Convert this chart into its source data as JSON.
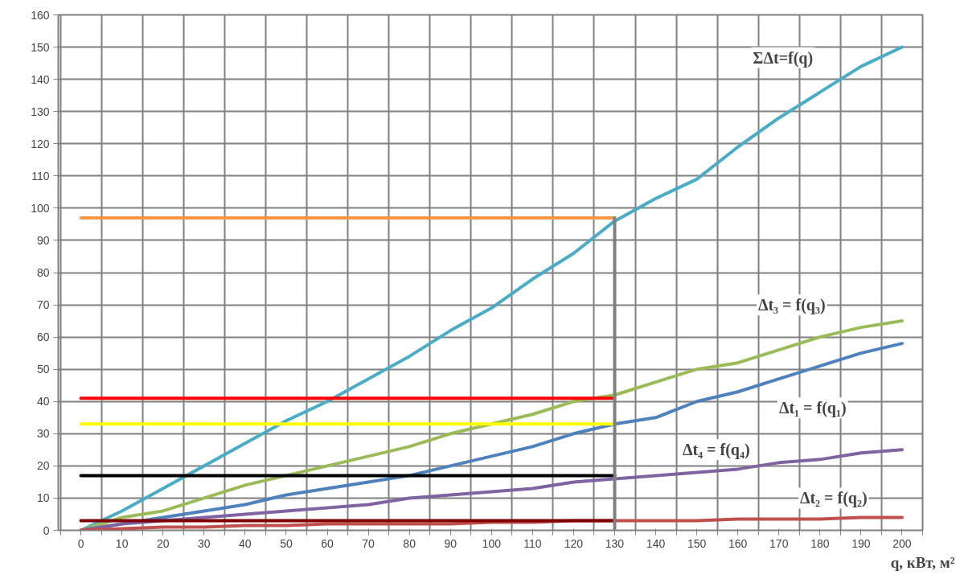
{
  "chart_data": {
    "type": "line",
    "xlabel": "q, кВт, м²",
    "x": [
      0,
      10,
      20,
      30,
      40,
      50,
      60,
      70,
      80,
      90,
      100,
      110,
      120,
      130,
      140,
      150,
      160,
      170,
      180,
      190,
      200
    ],
    "series": [
      {
        "name": "ΣΔt=f(q)",
        "color": "#4bacc6",
        "values": [
          0,
          6,
          13,
          20,
          27,
          34,
          40,
          47,
          54,
          62,
          69,
          78,
          86,
          96,
          103,
          109,
          119,
          128,
          136,
          144,
          150
        ]
      },
      {
        "name": "Δt₃ = f(q₃)",
        "color": "#9bbb59",
        "values": [
          0,
          4,
          6,
          10,
          14,
          17,
          20,
          23,
          26,
          30,
          33,
          36,
          40,
          42,
          46,
          50,
          52,
          56,
          60,
          63,
          65
        ]
      },
      {
        "name": "Δt₁ = f(q₁)",
        "color": "#4f81bd",
        "values": [
          0,
          2,
          4,
          6,
          8,
          11,
          13,
          15,
          17,
          20,
          23,
          26,
          30,
          33,
          35,
          40,
          43,
          47,
          51,
          55,
          58
        ]
      },
      {
        "name": "Δt₄ = f(q₄)",
        "color": "#8064a2",
        "values": [
          0,
          2,
          3,
          4,
          5,
          6,
          7,
          8,
          10,
          11,
          12,
          13,
          15,
          16,
          17,
          18,
          19,
          21,
          22,
          24,
          25
        ]
      },
      {
        "name": "Δt₂ = f(q₂)",
        "color": "#c0504d",
        "values": [
          0,
          0.5,
          1,
          1,
          1.5,
          1.5,
          2,
          2,
          2,
          2,
          2.5,
          2.5,
          3,
          3,
          3,
          3,
          3.5,
          3.5,
          3.5,
          4,
          4
        ]
      },
      {
        "color": "#f79646",
        "values": [
          97,
          97,
          97,
          97,
          97,
          97,
          97,
          97,
          97,
          97,
          97,
          97,
          97,
          97,
          null,
          null,
          null,
          null,
          null,
          null,
          null
        ]
      },
      {
        "color": "#ff0000",
        "values": [
          41,
          41,
          41,
          41,
          41,
          41,
          41,
          41,
          41,
          41,
          41,
          41,
          41,
          41,
          null,
          null,
          null,
          null,
          null,
          null,
          null
        ]
      },
      {
        "color": "#ffff00",
        "values": [
          33,
          33,
          33,
          33,
          33,
          33,
          33,
          33,
          33,
          33,
          33,
          33,
          33,
          33,
          null,
          null,
          null,
          null,
          null,
          null,
          null
        ]
      },
      {
        "color": "#000000",
        "values": [
          17,
          17,
          17,
          17,
          17,
          17,
          17,
          17,
          17,
          17,
          17,
          17,
          17,
          17,
          null,
          null,
          null,
          null,
          null,
          null,
          null
        ]
      },
      {
        "color": "#7f0000",
        "values": [
          3,
          3,
          3,
          3,
          3,
          3,
          3,
          3,
          3,
          3,
          3,
          3,
          3,
          3,
          null,
          null,
          null,
          null,
          null,
          null,
          null
        ]
      },
      {
        "color": "#808080",
        "x": [
          130,
          130
        ],
        "values": [
          0,
          97
        ]
      }
    ],
    "xlim": [
      -5.5,
      205
    ],
    "xticks": [
      {
        "value": -5,
        "label": null
      },
      0,
      {
        "value": 5,
        "label": null
      },
      10,
      {
        "value": 15,
        "label": null
      },
      20,
      {
        "value": 25,
        "label": null
      },
      30,
      {
        "value": 35,
        "label": null
      },
      40,
      {
        "value": 45,
        "label": null
      },
      50,
      {
        "value": 55,
        "label": null
      },
      60,
      {
        "value": 65,
        "label": null
      },
      70,
      {
        "value": 75,
        "label": null
      },
      80,
      {
        "value": 85,
        "label": null
      },
      90,
      {
        "value": 95,
        "label": null
      },
      100,
      {
        "value": 105,
        "label": null
      },
      110,
      {
        "value": 115,
        "label": null
      },
      120,
      {
        "value": 125,
        "label": null
      },
      130,
      {
        "value": 135,
        "label": null
      },
      140,
      {
        "value": 145,
        "label": null
      },
      150,
      {
        "value": 155,
        "label": null
      },
      160,
      {
        "value": 165,
        "label": null
      },
      170,
      {
        "value": 175,
        "label": null
      },
      180,
      {
        "value": 185,
        "label": null
      },
      190,
      {
        "value": 195,
        "label": null
      },
      200,
      {
        "value": 205,
        "label": null
      }
    ],
    "ylim": [
      0,
      160
    ],
    "yticks": [
      0,
      10,
      20,
      30,
      40,
      50,
      60,
      70,
      80,
      90,
      100,
      110,
      120,
      130,
      140,
      150,
      160
    ],
    "grid": true,
    "marker": "none",
    "line_style": "solid"
  }
}
